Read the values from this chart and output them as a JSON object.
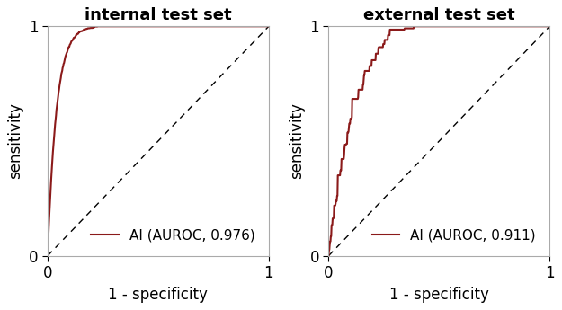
{
  "title_left": "internal test set",
  "title_right": "external test set",
  "xlabel": "1 - specificity",
  "ylabel": "sensitivity",
  "auroc_internal": 0.976,
  "auroc_external": 0.911,
  "roc_color": "#8B1A1A",
  "roc_linewidth": 1.5,
  "diag_color": "black",
  "diag_linewidth": 1.0,
  "xlim": [
    0,
    1
  ],
  "ylim": [
    0,
    1
  ],
  "xticks": [
    0,
    1
  ],
  "yticks": [
    0,
    1
  ],
  "tick_fontsize": 12,
  "label_fontsize": 12,
  "title_fontsize": 13,
  "legend_fontsize": 11,
  "background_color": "#ffffff",
  "spine_color": "#aaaaaa",
  "spine_linewidth": 0.8
}
